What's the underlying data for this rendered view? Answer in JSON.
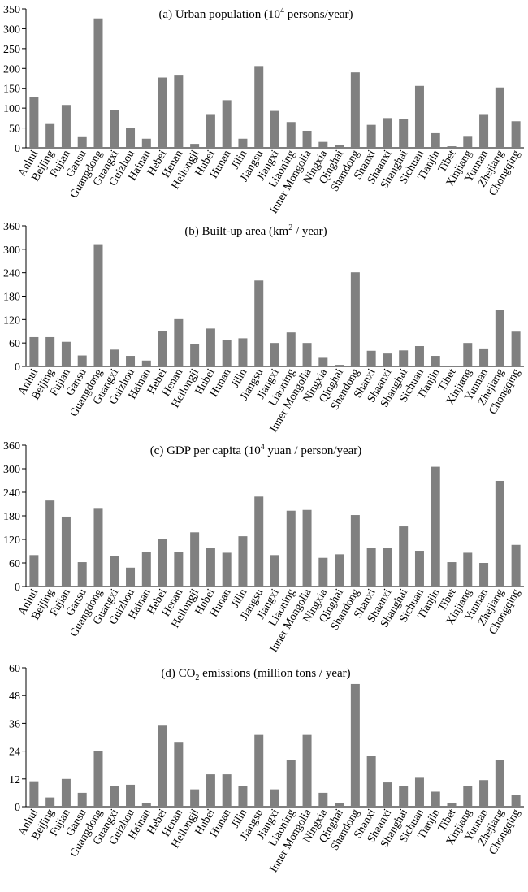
{
  "chart_data": [
    {
      "type": "bar",
      "title": "(a) Urban population (10",
      "title_sup": "4",
      "title_rest": " persons/year)",
      "ylim": [
        0,
        350
      ],
      "yticks": [
        0,
        50,
        100,
        150,
        200,
        250,
        300,
        350
      ],
      "categories": [
        "Anhui",
        "Beijing",
        "Fujian",
        "Gansu",
        "Guangdong",
        "Guangxi",
        "Guizhou",
        "Hainan",
        "Hebei",
        "Henan",
        "Heilongji",
        "Hubei",
        "Hunan",
        "Jilin",
        "Jiangsu",
        "Jiangxi",
        "Liaoning",
        "Inner Mongolia",
        "Ningxia",
        "Qinghai",
        "Shandong",
        "Shanxi",
        "Shaanxi",
        "Shanghai",
        "Sichuan",
        "Tianjin",
        "Tibet",
        "Xinjiang",
        "Yunnan",
        "Zhejiang",
        "Chongqing"
      ],
      "values": [
        128,
        60,
        108,
        27,
        326,
        95,
        50,
        23,
        177,
        184,
        10,
        85,
        120,
        23,
        206,
        93,
        65,
        43,
        15,
        8,
        190,
        58,
        75,
        73,
        156,
        37,
        4,
        28,
        85,
        152,
        67
      ]
    },
    {
      "type": "bar",
      "title": "(b) Built-up area (km",
      "title_sup": "2",
      "title_rest": " / year)",
      "ylim": [
        0,
        360
      ],
      "yticks": [
        0,
        60,
        120,
        180,
        240,
        300,
        360
      ],
      "categories": [
        "Anhui",
        "Beijing",
        "Fujian",
        "Gansu",
        "Guangdong",
        "Guangxi",
        "Guizhou",
        "Hainan",
        "Hebei",
        "Henan",
        "Heilongji",
        "Hubei",
        "Hunan",
        "Jilin",
        "Jiangsu",
        "Jiangxi",
        "Liaoning",
        "Inner Mongolia",
        "Ningxia",
        "Qinghai",
        "Shandong",
        "Shanxi",
        "Shaanxi",
        "Shanghai",
        "Sichuan",
        "Tianjin",
        "Tibet",
        "Xinjiang",
        "Yunnan",
        "Zhejiang",
        "Chongqing"
      ],
      "values": [
        75,
        75,
        63,
        28,
        313,
        43,
        27,
        15,
        91,
        121,
        58,
        97,
        68,
        72,
        220,
        60,
        87,
        60,
        22,
        4,
        241,
        40,
        33,
        41,
        52,
        27,
        1,
        60,
        46,
        145,
        89
      ]
    },
    {
      "type": "bar",
      "title": "(c) GDP per capita (10",
      "title_sup": "4",
      "title_rest": " yuan / person/year)",
      "ylim": [
        0,
        360
      ],
      "yticks": [
        0,
        60,
        120,
        180,
        240,
        300,
        360
      ],
      "categories": [
        "Anhui",
        "Beijing",
        "Fujian",
        "Gansu",
        "Guangdong",
        "Guangxi",
        "Guizhou",
        "Hainan",
        "Hebei",
        "Henan",
        "Heilongji",
        "Hubei",
        "Hunan",
        "Jilin",
        "Jiangsu",
        "Jiangxi",
        "Liaoning",
        "Inner Mongolia",
        "Ningxia",
        "Qinghai",
        "Shandong",
        "Shanxi",
        "Shaanxi",
        "Shanghai",
        "Sichuan",
        "Tianjin",
        "Tibet",
        "Xinjiang",
        "Yunnan",
        "Zhejiang",
        "Chongqing"
      ],
      "values": [
        80,
        219,
        178,
        62,
        200,
        77,
        48,
        88,
        121,
        88,
        138,
        99,
        86,
        128,
        229,
        80,
        193,
        195,
        73,
        82,
        182,
        99,
        99,
        153,
        91,
        305,
        62,
        86,
        60,
        269,
        106
      ]
    },
    {
      "type": "bar",
      "title": "(d) CO",
      "title_sub": "2",
      "title_rest": " emissions (million tons / year)",
      "ylim": [
        0,
        60
      ],
      "yticks": [
        0,
        12,
        24,
        36,
        48,
        60
      ],
      "categories": [
        "Anhui",
        "Beijing",
        "Fujian",
        "Gansu",
        "Guangdong",
        "Guangxi",
        "Guizhou",
        "Hainan",
        "Hebei",
        "Henan",
        "Heilongji",
        "Hubei",
        "Hunan",
        "Jilin",
        "Jiangsu",
        "Jiangxi",
        "Liaoning",
        "Inner Mongolia",
        "Ningxia",
        "Qinghai",
        "Shandong",
        "Shanxi",
        "Shaanxi",
        "Shanghai",
        "Sichuan",
        "Tianjin",
        "Tibet",
        "Xinjiang",
        "Yunnan",
        "Zhejiang",
        "Chongqing"
      ],
      "values": [
        11,
        4,
        12,
        6,
        24,
        9,
        9.5,
        1.5,
        35,
        28,
        7.5,
        14,
        14,
        9,
        31,
        7.5,
        20,
        31,
        6,
        1.5,
        53,
        22,
        10.5,
        9,
        12.5,
        6.5,
        1.5,
        9,
        11.5,
        20,
        5
      ]
    }
  ],
  "colors": {
    "bar": "#808080",
    "axis": "#000000"
  }
}
